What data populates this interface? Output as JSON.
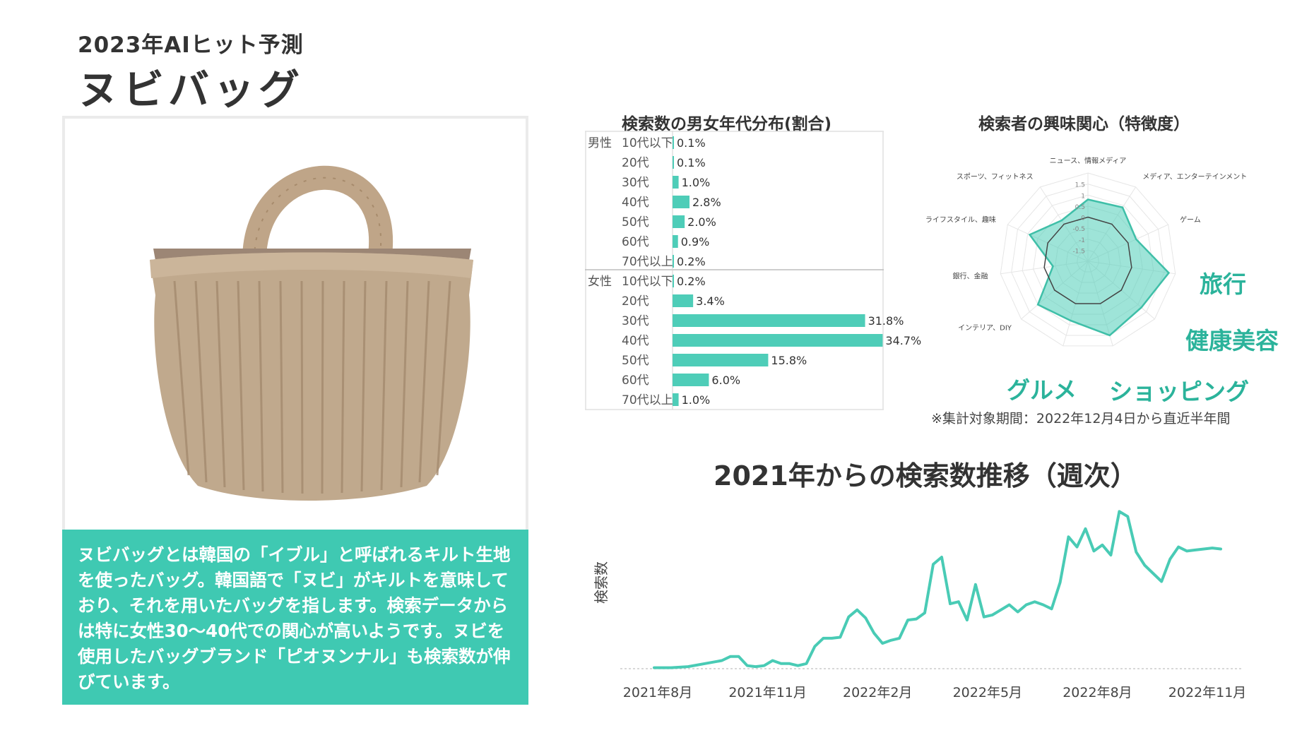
{
  "header": {
    "subtitle": "2023年AIヒット予測",
    "title": "ヌビバッグ"
  },
  "description": "ヌビバッグとは韓国の「イブル」と呼ばれるキルト生地を使ったバッグ。韓国語で「ヌビ」がキルトを意味しており、それを用いたバッグを指します。検索データからは特に女性30〜40代での関心が高いようです。ヌビを使用したバッグブランド「ピオヌンナル」も検索数が伸びています。",
  "image": {
    "subject": "tote-bag-illustration"
  },
  "colors": {
    "accent": "#3fc9b2",
    "bar": "#4ecdb8",
    "line": "#49cbb5",
    "text": "#333333"
  },
  "chart_data": [
    {
      "type": "bar",
      "orientation": "horizontal",
      "title": "検索数の男女年代分布(割合)",
      "groups": [
        {
          "name": "男性",
          "categories": [
            "10代以下",
            "20代",
            "30代",
            "40代",
            "50代",
            "60代",
            "70代以上"
          ],
          "values": [
            0.1,
            0.1,
            1.0,
            2.8,
            2.0,
            0.9,
            0.2
          ],
          "labels": [
            "0.1%",
            "0.1%",
            "1.0%",
            "2.8%",
            "2.0%",
            "0.9%",
            "0.2%"
          ]
        },
        {
          "name": "女性",
          "categories": [
            "10代以下",
            "20代",
            "30代",
            "40代",
            "50代",
            "60代",
            "70代以上"
          ],
          "values": [
            0.2,
            3.4,
            31.8,
            34.7,
            15.8,
            6.0,
            1.0
          ],
          "labels": [
            "0.2%",
            "3.4%",
            "31.8%",
            "34.7%",
            "15.8%",
            "6.0%",
            "1.0%"
          ]
        }
      ],
      "xlim": [
        0,
        35
      ]
    },
    {
      "type": "radar",
      "title": "検索者の興味関心（特徴度）",
      "axes": [
        "ニュース、情報メディア",
        "メディア、エンターテインメント",
        "ゲーム",
        "旅行",
        "健康美容",
        "ショッピング",
        "グルメ",
        "インテリア、DIY",
        "銀行、金融",
        "ライフスタイル、趣味",
        "スポーツ、フィットネス"
      ],
      "values": [
        0.8,
        0.9,
        0.4,
        1.7,
        1.2,
        1.5,
        0.8,
        1.0,
        -0.4,
        0.9,
        0.2
      ],
      "reference_ring": 0,
      "scale_ticks": [
        "1.5",
        "1",
        "0.5",
        "0",
        "-0.5",
        "-1",
        "-1.5"
      ],
      "rlim": [
        -2,
        2
      ],
      "highlights": [
        "旅行",
        "健康美容",
        "グルメ",
        "ショッピング"
      ],
      "note": "※集計対象期間：2022年12月4日から直近半年間"
    },
    {
      "type": "line",
      "title": "2021年からの検索数推移（週次）",
      "ylabel": "検索数",
      "xlabel": "",
      "x_ticks": [
        "2021年8月",
        "2021年11月",
        "2022年2月",
        "2022年5月",
        "2022年8月",
        "2022年11月"
      ],
      "x_tick_weeks": [
        0,
        13,
        26,
        39,
        52,
        65
      ],
      "x_weeks": [
        0,
        2,
        4,
        6,
        8,
        9,
        10,
        11,
        12,
        13,
        14,
        15,
        16,
        17,
        18,
        19,
        20,
        21,
        22,
        23,
        24,
        25,
        26,
        27,
        28,
        29,
        30,
        31,
        32,
        33,
        34,
        35,
        36,
        37,
        38,
        39,
        40,
        41,
        42,
        43,
        44,
        45,
        46,
        47,
        48,
        49,
        50,
        51,
        52,
        53,
        54,
        55,
        56,
        57,
        58,
        59,
        60,
        61,
        62,
        63,
        64,
        65,
        66,
        67
      ],
      "values": [
        1,
        1,
        2,
        5,
        8,
        12,
        12,
        3,
        2,
        3,
        8,
        5,
        5,
        3,
        5,
        22,
        30,
        30,
        31,
        51,
        58,
        50,
        35,
        25,
        28,
        30,
        48,
        49,
        55,
        103,
        110,
        64,
        66,
        48,
        83,
        51,
        53,
        58,
        63,
        56,
        63,
        66,
        63,
        59,
        85,
        130,
        120,
        138,
        116,
        122,
        112,
        155,
        150,
        115,
        102,
        94,
        86,
        108,
        120,
        116,
        117,
        118,
        119,
        118
      ],
      "ylim": [
        0,
        165
      ],
      "grid": false
    }
  ]
}
